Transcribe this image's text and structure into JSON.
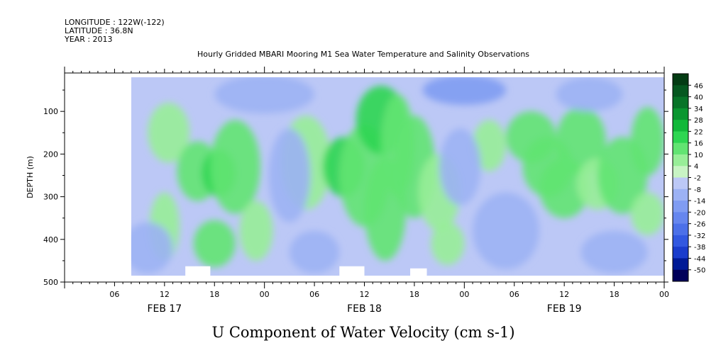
{
  "header": {
    "longitude": "LONGITUDE : 122W(-122)",
    "latitude": "LATITUDE : 36.8N",
    "year": "YEAR : 2013"
  },
  "chart_data": {
    "type": "heatmap",
    "title": "Hourly Gridded MBARI Mooring M1 Sea Water Temperature and Salinity Observations",
    "subtitle": "U Component of Water Velocity (cm s-1)",
    "ylabel": "DEPTH (m)",
    "y_axis_inverted": true,
    "ylim": [
      500,
      10
    ],
    "y_ticks": [
      100,
      200,
      300,
      400,
      500
    ],
    "xlim_hours": [
      0,
      72
    ],
    "x_ticks": [
      {
        "hour": 6,
        "label": "06"
      },
      {
        "hour": 12,
        "label": "12"
      },
      {
        "hour": 18,
        "label": "18"
      },
      {
        "hour": 24,
        "label": "00"
      },
      {
        "hour": 30,
        "label": "06"
      },
      {
        "hour": 36,
        "label": "12"
      },
      {
        "hour": 42,
        "label": "18"
      },
      {
        "hour": 48,
        "label": "00"
      },
      {
        "hour": 54,
        "label": "06"
      },
      {
        "hour": 60,
        "label": "12"
      },
      {
        "hour": 66,
        "label": "18"
      },
      {
        "hour": 72,
        "label": "00"
      }
    ],
    "day_labels": [
      {
        "hour": 12,
        "label": "FEB 17"
      },
      {
        "hour": 36,
        "label": "FEB 18"
      },
      {
        "hour": 60,
        "label": "FEB 19"
      }
    ],
    "data_extent": {
      "hour_start": 8,
      "hour_end": 72,
      "depth_top": 20,
      "depth_bottom": 485
    },
    "colorbar": {
      "levels": [
        -50,
        -44,
        -38,
        -32,
        -26,
        -20,
        -14,
        -8,
        -2,
        4,
        10,
        16,
        22,
        28,
        34,
        40,
        46
      ],
      "labels": [
        "46",
        "40",
        "34",
        "28",
        "22",
        "16",
        "10",
        "4",
        "-2",
        "-8",
        "-14",
        "-20",
        "-26",
        "-32",
        "-38",
        "-44",
        "-50"
      ],
      "colors": [
        "#00005a",
        "#001a96",
        "#1a3ccc",
        "#3258e0",
        "#4c70e8",
        "#6686ee",
        "#809cf2",
        "#9cb2f4",
        "#bcc8f6",
        "#c8f4c4",
        "#98ee98",
        "#62e472",
        "#2ed652",
        "#12b83a",
        "#0a9630",
        "#087428",
        "#065820",
        "#043c14"
      ]
    },
    "hotspots": [
      {
        "hour": 12.5,
        "depth": 150,
        "value": 9,
        "rx": 2.5,
        "ry": 70
      },
      {
        "hour": 16,
        "depth": 240,
        "value": 15,
        "rx": 2.5,
        "ry": 70
      },
      {
        "hour": 18.5,
        "depth": 245,
        "value": 21,
        "rx": 2,
        "ry": 55
      },
      {
        "hour": 20.5,
        "depth": 230,
        "value": 14,
        "rx": 3,
        "ry": 110
      },
      {
        "hour": 18,
        "depth": 410,
        "value": 10,
        "rx": 2.5,
        "ry": 55
      },
      {
        "hour": 12,
        "depth": 370,
        "value": 7,
        "rx": 1.8,
        "ry": 80
      },
      {
        "hour": 23,
        "depth": 380,
        "value": 8,
        "rx": 2,
        "ry": 70
      },
      {
        "hour": 29,
        "depth": 220,
        "value": 9,
        "rx": 3,
        "ry": 110
      },
      {
        "hour": 33.5,
        "depth": 230,
        "value": 20,
        "rx": 2.5,
        "ry": 70
      },
      {
        "hour": 36,
        "depth": 250,
        "value": 13,
        "rx": 3,
        "ry": 120
      },
      {
        "hour": 38,
        "depth": 120,
        "value": 18,
        "rx": 3,
        "ry": 80
      },
      {
        "hour": 38.5,
        "depth": 330,
        "value": 13,
        "rx": 2.5,
        "ry": 120
      },
      {
        "hour": 40,
        "depth": 180,
        "value": 12,
        "rx": 2,
        "ry": 120
      },
      {
        "hour": 42,
        "depth": 230,
        "value": 11,
        "rx": 2.5,
        "ry": 120
      },
      {
        "hour": 45,
        "depth": 290,
        "value": 9,
        "rx": 2.5,
        "ry": 90
      },
      {
        "hour": 51,
        "depth": 180,
        "value": 8,
        "rx": 2,
        "ry": 60
      },
      {
        "hour": 56,
        "depth": 160,
        "value": 14,
        "rx": 3,
        "ry": 60
      },
      {
        "hour": 58,
        "depth": 230,
        "value": 15,
        "rx": 3,
        "ry": 70
      },
      {
        "hour": 60,
        "depth": 280,
        "value": 10,
        "rx": 3,
        "ry": 70
      },
      {
        "hour": 62,
        "depth": 170,
        "value": 15,
        "rx": 3,
        "ry": 80
      },
      {
        "hour": 64,
        "depth": 270,
        "value": 9,
        "rx": 2.5,
        "ry": 60
      },
      {
        "hour": 67,
        "depth": 250,
        "value": 14,
        "rx": 3,
        "ry": 90
      },
      {
        "hour": 70,
        "depth": 170,
        "value": 14,
        "rx": 2,
        "ry": 80
      },
      {
        "hour": 70,
        "depth": 340,
        "value": 6,
        "rx": 2,
        "ry": 50
      },
      {
        "hour": 46,
        "depth": 410,
        "value": 6,
        "rx": 2,
        "ry": 50
      },
      {
        "hour": 24,
        "depth": 60,
        "value": -14,
        "rx": 6,
        "ry": 45
      },
      {
        "hour": 48,
        "depth": 50,
        "value": -16,
        "rx": 5,
        "ry": 35
      },
      {
        "hour": 27,
        "depth": 250,
        "value": -14,
        "rx": 2.5,
        "ry": 110
      },
      {
        "hour": 10,
        "depth": 420,
        "value": -13,
        "rx": 3,
        "ry": 60
      },
      {
        "hour": 53,
        "depth": 380,
        "value": -12,
        "rx": 4,
        "ry": 90
      },
      {
        "hour": 47.5,
        "depth": 230,
        "value": -10,
        "rx": 2.5,
        "ry": 90
      },
      {
        "hour": 66,
        "depth": 430,
        "value": -10,
        "rx": 4,
        "ry": 50
      },
      {
        "hour": 30,
        "depth": 430,
        "value": -12,
        "rx": 3,
        "ry": 50
      },
      {
        "hour": 63,
        "depth": 60,
        "value": -12,
        "rx": 4,
        "ry": 40
      }
    ]
  }
}
